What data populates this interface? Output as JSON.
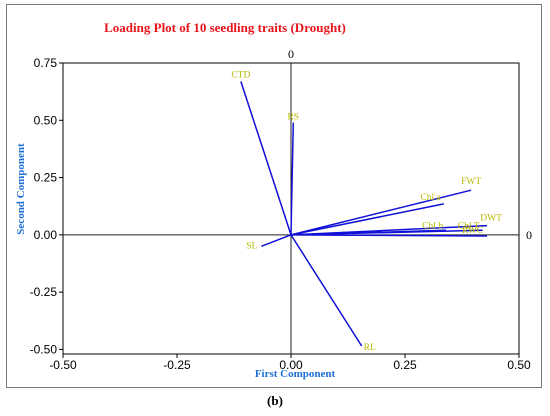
{
  "figure_caption": "(b)",
  "chart_data": {
    "type": "scatter",
    "subtype": "loading-plot-vectors",
    "title": "Loading Plot of 10 seedling traits (Drought)",
    "xlabel": "First Component",
    "ylabel": "Second Component",
    "xlim": [
      -0.5,
      0.5
    ],
    "ylim": [
      -0.52,
      0.75
    ],
    "xticks": [
      "-0.50",
      "-0.25",
      "0.00",
      "0.25",
      "0.50"
    ],
    "yticks": [
      "-0.50",
      "-0.25",
      "0.00",
      "0.25",
      "0.50",
      "0.75"
    ],
    "reference_line_label_x": "0",
    "reference_line_label_y": "0",
    "grid": false,
    "colors": {
      "title": "#e8141c",
      "axis_label": "#1f6fd6",
      "vector": "#1010d8",
      "trait_label": "#b8b800"
    },
    "points": [
      {
        "label": "CTD",
        "x": -0.11,
        "y": 0.67
      },
      {
        "label": "RS",
        "x": 0.005,
        "y": 0.49
      },
      {
        "label": "FWT",
        "x": 0.395,
        "y": 0.195
      },
      {
        "label": "Chl a",
        "x": 0.335,
        "y": 0.135
      },
      {
        "label": "DWT",
        "x": 0.43,
        "y": 0.04
      },
      {
        "label": "Chl b",
        "x": 0.34,
        "y": 0.02
      },
      {
        "label": "Chl T",
        "x": 0.42,
        "y": 0.02
      },
      {
        "label": "RWC",
        "x": 0.43,
        "y": -0.005
      },
      {
        "label": "SL",
        "x": -0.065,
        "y": -0.05
      },
      {
        "label": "RL",
        "x": 0.155,
        "y": -0.485
      }
    ]
  }
}
